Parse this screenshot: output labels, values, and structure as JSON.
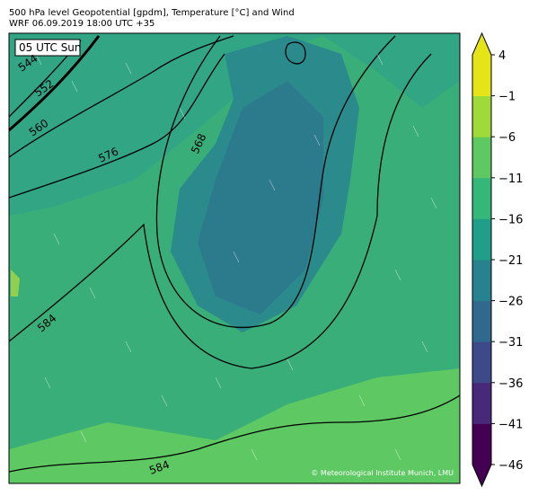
{
  "header": {
    "title": "500 hPa level Geopotential [gpdm], Temperature [°C] and Wind",
    "subtitle": "WRF 06.09.2019 18:00 UTC +35"
  },
  "map": {
    "time_label": "05 UTC Sun",
    "contour_labels": [
      544,
      552,
      560,
      576,
      568,
      584,
      584
    ],
    "credit": "© Meteorological Institute Munich, LMU"
  },
  "colorbar": {
    "lim": [
      -46,
      4
    ],
    "ticks": [
      {
        "value": 4,
        "label": "4"
      },
      {
        "value": -1,
        "label": "−1"
      },
      {
        "value": -6,
        "label": "−6"
      },
      {
        "value": -11,
        "label": "−11"
      },
      {
        "value": -16,
        "label": "−16"
      },
      {
        "value": -21,
        "label": "−21"
      },
      {
        "value": -26,
        "label": "−26"
      },
      {
        "value": -31,
        "label": "−31"
      },
      {
        "value": -36,
        "label": "−36"
      },
      {
        "value": -41,
        "label": "−41"
      },
      {
        "value": -46,
        "label": "−46"
      }
    ],
    "colors": [
      "#440154",
      "#482878",
      "#3e4989",
      "#31688e",
      "#26828e",
      "#1f9e89",
      "#35b779",
      "#5ec962",
      "#a0da39",
      "#e5e419"
    ]
  }
}
